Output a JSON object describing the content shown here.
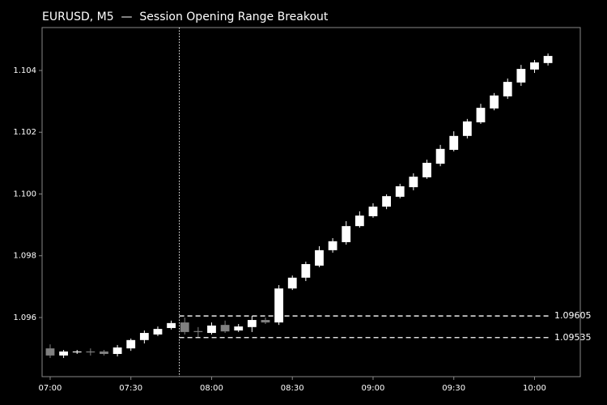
{
  "chart_data": {
    "type": "candlestick",
    "title": "EURUSD, M5  —  Session Opening Range Breakout",
    "x": [
      "07:00",
      "07:05",
      "07:10",
      "07:15",
      "07:20",
      "07:25",
      "07:30",
      "07:35",
      "07:40",
      "07:45",
      "07:50",
      "07:55",
      "08:00",
      "08:05",
      "08:10",
      "08:15",
      "08:20",
      "08:25",
      "08:30",
      "08:35",
      "08:40",
      "08:45",
      "08:50",
      "08:55",
      "09:00",
      "09:05",
      "09:10",
      "09:15",
      "09:20",
      "09:25",
      "09:30",
      "09:35",
      "09:40",
      "09:45",
      "09:50",
      "09:55",
      "10:00",
      "10:05"
    ],
    "open": [
      1.095,
      1.09477,
      1.09487,
      1.0949,
      1.0949,
      1.09482,
      1.095,
      1.09527,
      1.09545,
      1.09566,
      1.09584,
      1.09556,
      1.0955,
      1.09576,
      1.09558,
      1.09569,
      1.09592,
      1.09584,
      1.09694,
      1.09729,
      1.09768,
      1.09818,
      1.09844,
      1.09896,
      1.09928,
      1.09959,
      1.09991,
      1.10022,
      1.10054,
      1.10098,
      1.10143,
      1.10188,
      1.10232,
      1.10277,
      1.10316,
      1.10361,
      1.10403,
      1.10424
    ],
    "high": [
      1.09513,
      1.09495,
      1.09495,
      1.095,
      1.09495,
      1.09511,
      1.09532,
      1.09558,
      1.09571,
      1.0959,
      1.096,
      1.09569,
      1.09584,
      1.0959,
      1.09579,
      1.09605,
      1.096,
      1.09705,
      1.09736,
      1.09781,
      1.09831,
      1.09857,
      1.09912,
      1.09944,
      1.0997,
      1.09999,
      1.10033,
      1.10067,
      1.10111,
      1.10159,
      1.10203,
      1.10243,
      1.10292,
      1.10327,
      1.10374,
      1.10418,
      1.10434,
      1.10455
    ],
    "low": [
      1.09469,
      1.09469,
      1.09482,
      1.09477,
      1.09477,
      1.09474,
      1.09492,
      1.09516,
      1.0954,
      1.09561,
      1.09545,
      1.09535,
      1.09545,
      1.0955,
      1.09553,
      1.09553,
      1.09579,
      1.09576,
      1.09689,
      1.09718,
      1.09763,
      1.0981,
      1.09836,
      1.09891,
      1.09923,
      1.09951,
      1.09986,
      1.10012,
      1.10049,
      1.1009,
      1.10138,
      1.1018,
      1.10227,
      1.10271,
      1.10308,
      1.1035,
      1.10392,
      1.10416
    ],
    "close": [
      1.09477,
      1.0949,
      1.0949,
      1.09487,
      1.09482,
      1.09503,
      1.09527,
      1.0955,
      1.09563,
      1.09582,
      1.09553,
      1.09553,
      1.09574,
      1.09555,
      1.09571,
      1.09592,
      1.09584,
      1.09694,
      1.09729,
      1.09773,
      1.09818,
      1.09847,
      1.09896,
      1.0993,
      1.09959,
      1.09993,
      1.10025,
      1.10056,
      1.10101,
      1.10146,
      1.10188,
      1.10235,
      1.10279,
      1.10319,
      1.10363,
      1.10405,
      1.10426,
      1.10447
    ],
    "up_color": "#ffffff",
    "down_color": "#808080",
    "xlim": [
      "06:57",
      "10:17"
    ],
    "xticks": [
      "07:00",
      "07:30",
      "08:00",
      "08:30",
      "09:00",
      "09:30",
      "10:00"
    ],
    "ylim": [
      1.094085,
      1.10539
    ],
    "yticks": [
      1.096,
      1.098,
      {
        "value": 1.1,
        "label": "1.100"
      },
      1.102,
      1.104
    ],
    "session_start": "07:48",
    "levels": [
      1.09605,
      1.09535
    ]
  }
}
